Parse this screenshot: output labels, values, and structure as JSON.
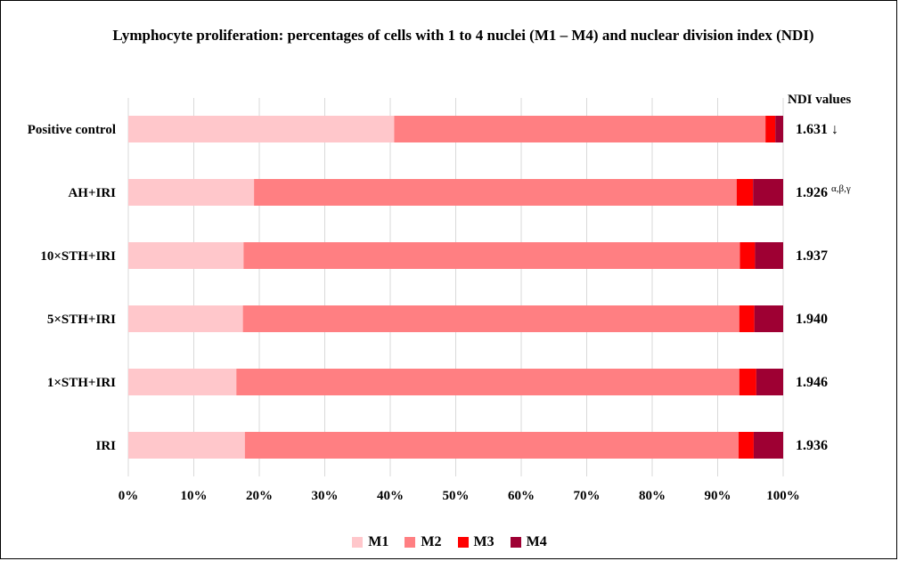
{
  "chart_data": {
    "type": "bar",
    "orientation": "horizontal",
    "stacked": true,
    "title": "Lymphocyte proliferation: percentages of cells with 1 to 4 nuclei (M1 – M4) and nuclear division index (NDI)",
    "categories": [
      "Positive control",
      "AH+IRI",
      "10×STH+IRI",
      "5×STH+IRI",
      "1×STH+IRI",
      "IRI"
    ],
    "series": [
      {
        "name": "M1",
        "color": "#FFC7CB",
        "values": [
          40.6,
          19.2,
          17.6,
          17.5,
          16.5,
          17.8
        ]
      },
      {
        "name": "M2",
        "color": "#FF7F82",
        "values": [
          56.7,
          73.7,
          75.8,
          75.8,
          76.8,
          75.4
        ]
      },
      {
        "name": "M3",
        "color": "#FF0000",
        "values": [
          1.5,
          2.5,
          2.3,
          2.3,
          2.6,
          2.3
        ]
      },
      {
        "name": "M4",
        "color": "#9E0033",
        "values": [
          1.2,
          4.6,
          4.3,
          4.4,
          4.1,
          4.5
        ]
      }
    ],
    "xlim": [
      0,
      100
    ],
    "x_ticks": [
      "0%",
      "10%",
      "20%",
      "30%",
      "40%",
      "50%",
      "60%",
      "70%",
      "80%",
      "90%",
      "100%"
    ],
    "grid": "vertical",
    "legend": "bottom",
    "ndi_header": "NDI values",
    "ndi_values": [
      "1.631",
      "1.926",
      "1.937",
      "1.940",
      "1.946",
      "1.936"
    ],
    "ndi_markers": [
      "↓",
      "α,β,γ",
      "",
      "",
      "",
      ""
    ]
  }
}
